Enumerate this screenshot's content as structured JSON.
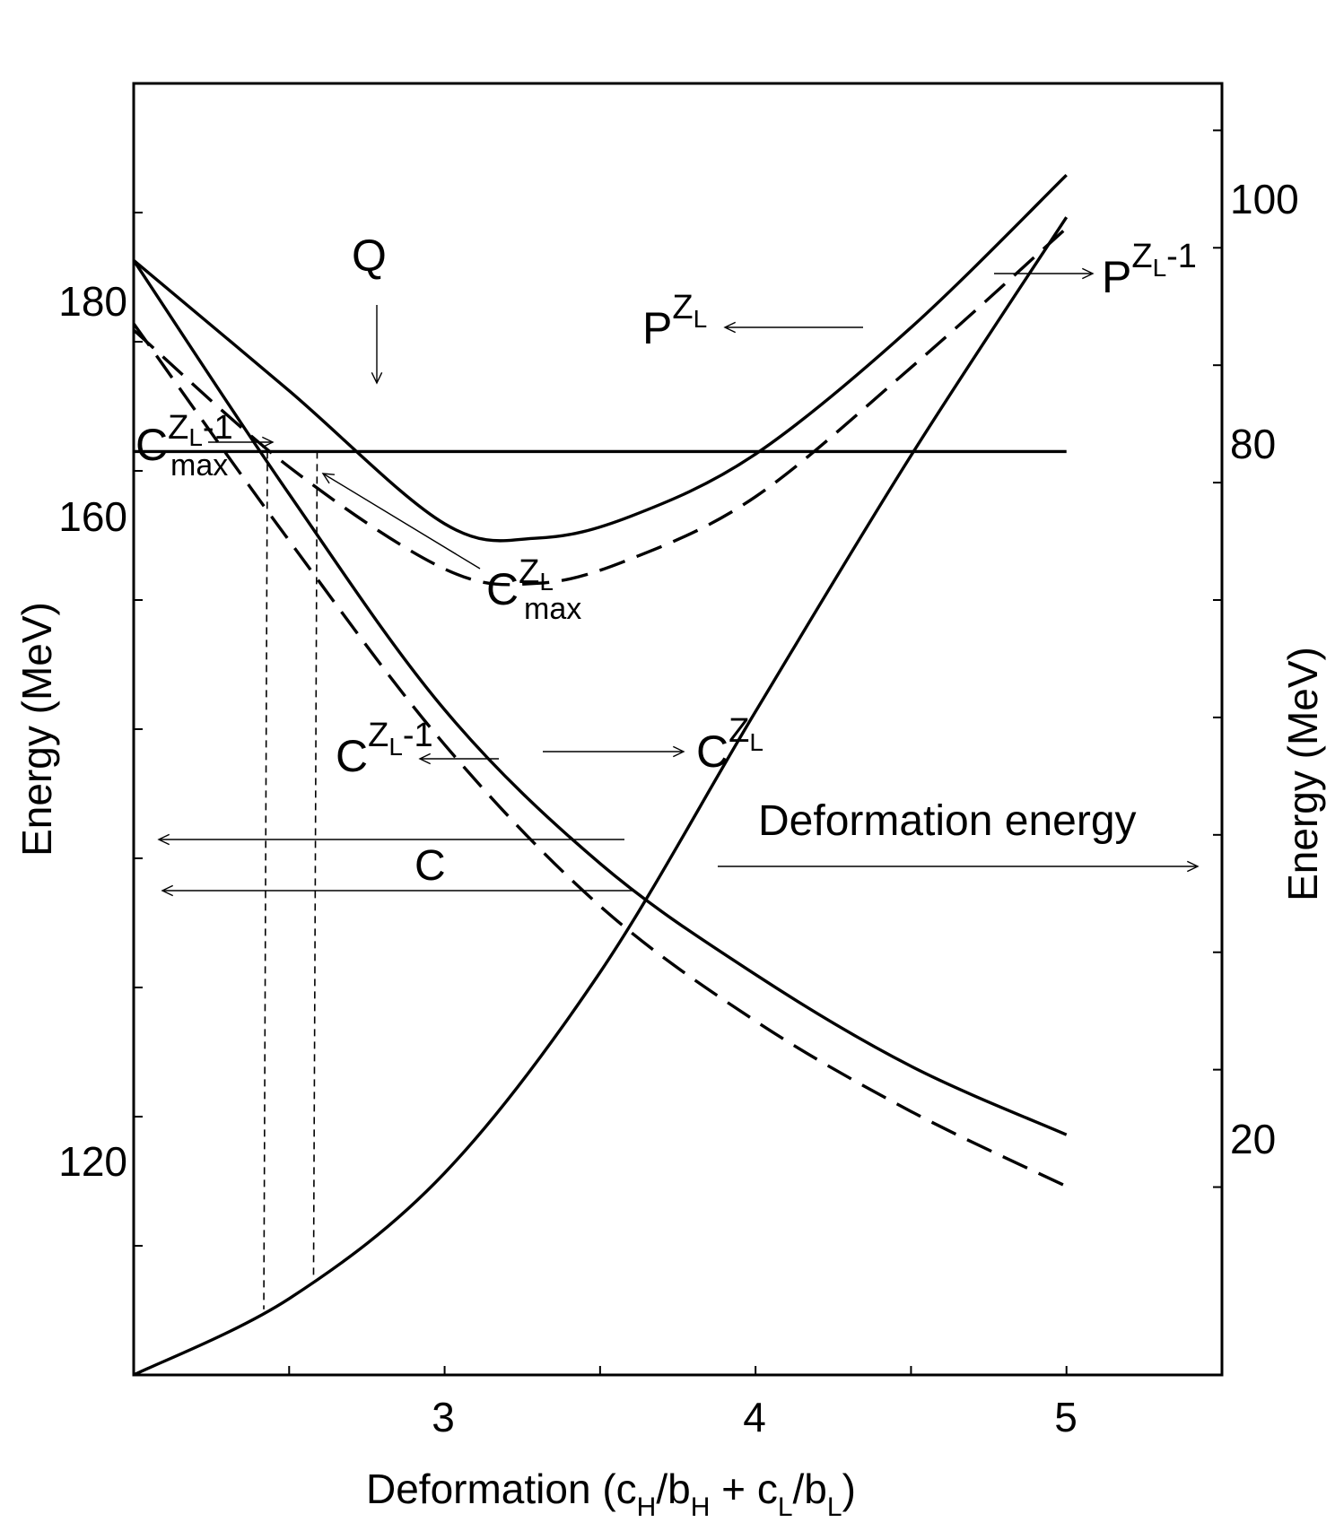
{
  "chart_data": {
    "type": "line",
    "xlabel": "Deformation",
    "xlabel_formula": {
      "open": "(c",
      "sub_h": "H",
      "mid1": "/b",
      "sub_h2": "H",
      "mid2": " + c",
      "sub_l": "L",
      "mid3": "/b",
      "sub_l2": "L",
      "close": ")"
    },
    "ylabel_left": "Energy (MeV)",
    "ylabel_right": "Energy (MeV)",
    "xlim": [
      2.0,
      5.5
    ],
    "ylim_left": [
      100,
      200
    ],
    "ylim_right": [
      -6,
      104
    ],
    "x_ticks_labeled": [
      "3",
      "4",
      "5"
    ],
    "left_ticks_labeled": [
      "120",
      "160",
      "180"
    ],
    "right_ticks_labeled": [
      "20",
      "80",
      "100"
    ],
    "series": [
      {
        "name": "P^{Z_L}",
        "axis": "left",
        "style": "solid",
        "x": [
          2.0,
          2.5,
          3.0,
          3.3,
          3.6,
          4.0,
          4.5,
          5.0
        ],
        "y": [
          186.3,
          176.2,
          165.9,
          164.8,
          166.5,
          171.3,
          181.1,
          192.9
        ]
      },
      {
        "name": "P^{Z_L-1}",
        "axis": "left",
        "style": "dashed",
        "x": [
          2.0,
          2.5,
          3.0,
          3.3,
          3.6,
          4.0,
          4.5,
          5.0
        ],
        "y": [
          180.9,
          170.3,
          162.4,
          161.3,
          163.2,
          168.0,
          178.0,
          188.8
        ]
      },
      {
        "name": "C^{Z_L}",
        "axis": "left",
        "style": "solid",
        "x": [
          2.0,
          2.5,
          3.0,
          3.5,
          4.0,
          4.5,
          5.0
        ],
        "y": [
          186.3,
          168.2,
          151.5,
          139.6,
          131.0,
          123.9,
          118.6
        ]
      },
      {
        "name": "C^{Z_L-1}",
        "axis": "left",
        "style": "dashed",
        "x": [
          2.0,
          2.5,
          3.0,
          3.5,
          4.0,
          4.5,
          5.0
        ],
        "y": [
          181.4,
          164.6,
          148.8,
          136.3,
          127.4,
          120.4,
          114.6
        ]
      },
      {
        "name": "Deformation energy",
        "axis": "right",
        "style": "solid",
        "x": [
          2.0,
          2.5,
          3.0,
          3.5,
          4.0,
          4.5,
          5.0
        ],
        "y": [
          -6.0,
          0.5,
          11.2,
          28.3,
          50.5,
          72.3,
          92.6
        ]
      }
    ],
    "q_line": {
      "label": "Q",
      "axis": "left",
      "y": 171.5,
      "x_range": [
        2.0,
        5.0
      ]
    },
    "annotations": {
      "q": "Q",
      "p_zl": {
        "base": "P",
        "sup": "Z",
        "sup_sub": "L"
      },
      "p_zl1": {
        "base": "P",
        "sup": "Z",
        "sup_sub": "L",
        "sup_tail": "-1"
      },
      "c_zl": {
        "base": "C",
        "sup": "Z",
        "sup_sub": "L"
      },
      "c_zl1": {
        "base": "C",
        "sup": "Z",
        "sup_sub": "L",
        "sup_tail": "-1"
      },
      "cmax_zl": {
        "base": "C",
        "sup": "Z",
        "sup_sub": "L",
        "sub": "max"
      },
      "cmax_zl1": {
        "base": "C",
        "sup": "Z",
        "sup_sub": "L",
        "sup_tail": "-1",
        "sub": "max"
      },
      "c": "C",
      "deformation_energy": "Deformation energy"
    },
    "c_max_points": [
      {
        "label": "C_max^{Z_L-1}",
        "x": 2.43,
        "y": 170.0
      },
      {
        "label": "C_max^{Z_L}",
        "x": 2.59,
        "y": 165.3
      }
    ]
  }
}
